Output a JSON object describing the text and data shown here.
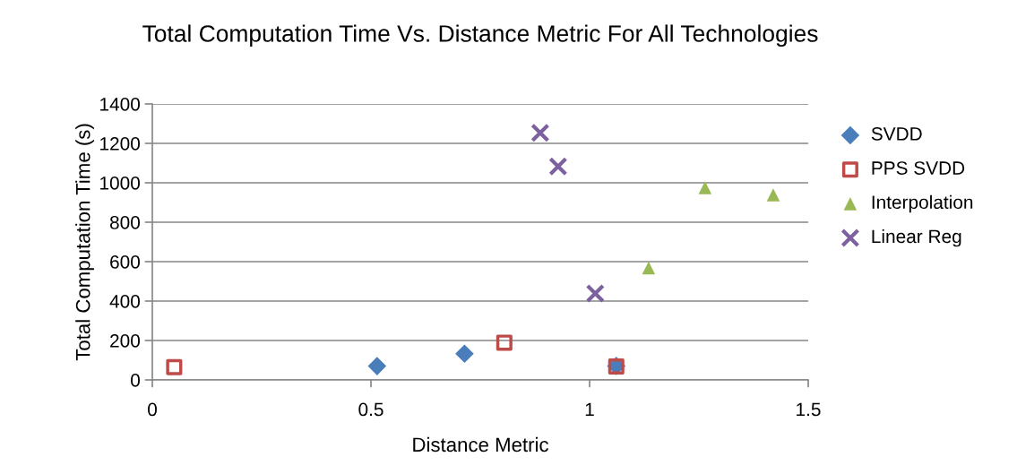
{
  "chart_data": {
    "type": "scatter",
    "title": "Total Computation Time Vs. Distance Metric For All Technologies",
    "xlabel": "Distance Metric",
    "ylabel": "Total Computation Time (s)",
    "xlim": [
      0,
      1.5
    ],
    "xticks": [
      0,
      0.5,
      1,
      1.5
    ],
    "ylim": [
      0,
      1400
    ],
    "yticks": [
      0,
      200,
      400,
      600,
      800,
      1000,
      1200,
      1400
    ],
    "grid": "y",
    "legend": "right",
    "series": [
      {
        "name": "SVDD",
        "color": "#4a7ebb",
        "marker": "diamond",
        "x": [
          0.514,
          0.714,
          1.061
        ],
        "values": [
          70,
          133,
          71
        ]
      },
      {
        "name": "PPS SVDD",
        "color": "#be4b48",
        "marker": "square",
        "x": [
          0.05,
          0.805,
          1.061
        ],
        "values": [
          65,
          189,
          68
        ]
      },
      {
        "name": "Interpolation",
        "color": "#98b954",
        "marker": "triangle",
        "x": [
          1.135,
          1.264,
          1.42
        ],
        "values": [
          568,
          975,
          939
        ]
      },
      {
        "name": "Linear Reg",
        "color": "#7d60a0",
        "marker": "cross",
        "x": [
          0.887,
          0.928,
          1.013
        ],
        "values": [
          1253,
          1083,
          439
        ]
      }
    ]
  }
}
